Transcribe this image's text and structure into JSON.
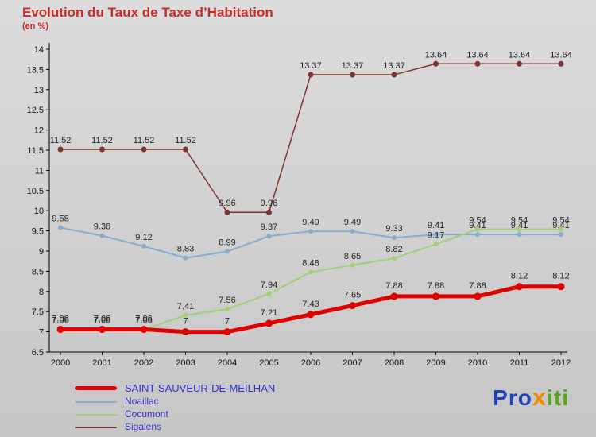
{
  "title": "Evolution du Taux de Taxe d’Habitation",
  "subtitle": "(en %)",
  "chart_data": {
    "type": "line",
    "x": [
      2000,
      2001,
      2002,
      2003,
      2004,
      2005,
      2006,
      2007,
      2008,
      2009,
      2010,
      2011,
      2012
    ],
    "xlabel": "",
    "ylabel": "",
    "ylim": [
      6.5,
      14
    ],
    "ytick_step": 0.5,
    "grid": false,
    "legend_position": "bottom-left",
    "series": [
      {
        "name": "Sigalens",
        "color_key": "sigalens",
        "width": 1.5,
        "point_r": 3.5,
        "label_dy": 8,
        "values": [
          11.52,
          11.52,
          11.52,
          11.52,
          9.96,
          9.96,
          13.37,
          13.37,
          13.37,
          13.64,
          13.64,
          13.64,
          13.64
        ]
      },
      {
        "name": "Noaillac",
        "color_key": "noaillac",
        "width": 2,
        "point_r": 3,
        "label_dy": 8,
        "values": [
          9.58,
          9.38,
          9.12,
          8.83,
          8.99,
          9.37,
          9.49,
          9.49,
          9.33,
          9.41,
          9.41,
          9.41,
          9.41
        ]
      },
      {
        "name": "Cocumont",
        "color_key": "cocumont",
        "width": 2,
        "point_r": 3,
        "label_dy": 8,
        "values": [
          7.06,
          7.06,
          7.06,
          7.41,
          7.56,
          7.94,
          8.48,
          8.65,
          8.82,
          9.17,
          9.54,
          9.54,
          9.54
        ]
      },
      {
        "name": "SAINT-SAUVEUR-DE-MEILHAN",
        "color_key": "saint_sauveur",
        "width": 5,
        "point_r": 4.5,
        "label_dy": 10,
        "values": [
          7.06,
          7.06,
          7.06,
          7,
          7,
          7.21,
          7.43,
          7.65,
          7.88,
          7.88,
          7.88,
          8.12,
          8.12
        ]
      }
    ]
  },
  "legend": {
    "items": [
      {
        "label": "SAINT-SAUVEUR-DE-MEILHAN",
        "color_key": "saint_sauveur"
      },
      {
        "label": "Noaillac",
        "color_key": "noaillac"
      },
      {
        "label": "Cocumont",
        "color_key": "cocumont"
      },
      {
        "label": "Sigalens",
        "color_key": "sigalens"
      }
    ]
  },
  "logo": {
    "pro": "Pro",
    "x": "x",
    "iti": "iti"
  },
  "colors": {
    "title": "#cc2a2a",
    "legend_text": "#3333cc",
    "axis": "#000000",
    "data_label": "#222222",
    "background_top": "#dcdcdc",
    "background_bottom": "#c6c6c6",
    "series": {
      "saint_sauveur": "#e00000",
      "noaillac": "#8aadce",
      "cocumont": "#a3cf7a",
      "sigalens": "#7b3333"
    },
    "logo": {
      "pro": "#2244bb",
      "x": "#f08a00",
      "iti": "#55aa11"
    }
  }
}
